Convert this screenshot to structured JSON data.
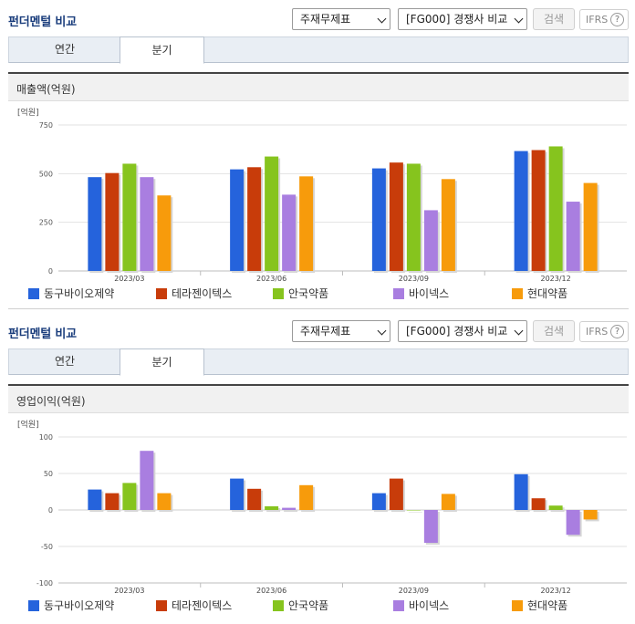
{
  "panels": [
    {
      "title": "펀더멘털 비교",
      "select1": "주재무제표",
      "select2": "[FG000] 경쟁사 비교",
      "search_label": "검색",
      "ifrs_label": "IFRS",
      "help_glyph": "?",
      "tabs": [
        "연간",
        "분기"
      ],
      "active_tab": "분기",
      "section_title": "매출액(억원)"
    },
    {
      "title": "펀더멘털 비교",
      "select1": "주재무제표",
      "select2": "[FG000] 경쟁사 비교",
      "search_label": "검색",
      "ifrs_label": "IFRS",
      "help_glyph": "?",
      "tabs": [
        "연간",
        "분기"
      ],
      "active_tab": "분기",
      "section_title": "영업이익(억원)"
    }
  ],
  "legend_colors": [
    "#2563dc",
    "#c83c0a",
    "#86c41e",
    "#a97ee0",
    "#f79b0b"
  ],
  "chart_data": [
    {
      "type": "bar",
      "unit": "[억원]",
      "categories": [
        "2023/03",
        "2023/06",
        "2023/09",
        "2023/12"
      ],
      "ylim": [
        0,
        750
      ],
      "yticks": [
        0,
        250,
        500,
        750
      ],
      "grid": true,
      "legend": "bottom",
      "series": [
        {
          "name": "동구바이오제약",
          "values": [
            482,
            522,
            527,
            616
          ]
        },
        {
          "name": "테라젠이텍스",
          "values": [
            503,
            533,
            557,
            621
          ]
        },
        {
          "name": "안국약품",
          "values": [
            551,
            588,
            551,
            640
          ]
        },
        {
          "name": "바이넥스",
          "values": [
            482,
            392,
            312,
            356
          ]
        },
        {
          "name": "현대약품",
          "values": [
            388,
            486,
            472,
            452
          ]
        }
      ]
    },
    {
      "type": "bar",
      "unit": "[억원]",
      "categories": [
        "2023/03",
        "2023/06",
        "2023/09",
        "2023/12"
      ],
      "ylim": [
        -100,
        100
      ],
      "yticks": [
        -100,
        -50,
        0,
        50,
        100
      ],
      "grid": true,
      "legend": "bottom",
      "series": [
        {
          "name": "동구바이오제약",
          "values": [
            28,
            43,
            23,
            49
          ]
        },
        {
          "name": "테라젠이텍스",
          "values": [
            23,
            29,
            43,
            16
          ]
        },
        {
          "name": "안국약품",
          "values": [
            37,
            5,
            0,
            6
          ]
        },
        {
          "name": "바이넥스",
          "values": [
            81,
            3,
            -45,
            -34
          ]
        },
        {
          "name": "현대약품",
          "values": [
            23,
            34,
            22,
            -13
          ]
        }
      ]
    }
  ]
}
